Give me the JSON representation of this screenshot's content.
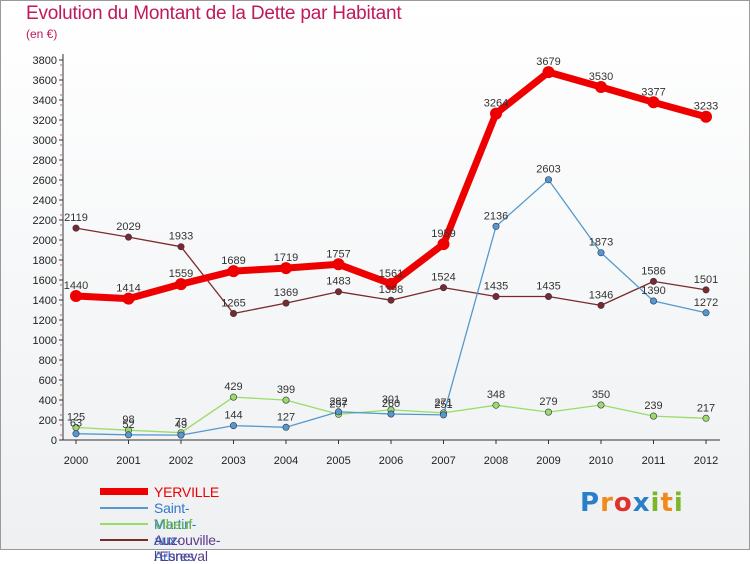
{
  "title": "Evolution du Montant de la Dette par Habitant",
  "subtitle": "(en €)",
  "logo": {
    "letters": [
      {
        "char": "P",
        "color": "#2a7fc9"
      },
      {
        "char": "r",
        "color": "#f08a1c"
      },
      {
        "char": "o",
        "color": "#e0322b"
      },
      {
        "char": "x",
        "color": "#2a7fc9"
      },
      {
        "char": "i",
        "color": "#7ab827"
      },
      {
        "char": "t",
        "color": "#f08a1c"
      },
      {
        "char": "i",
        "color": "#7ab827"
      }
    ]
  },
  "chart_data": {
    "type": "line",
    "title": "Evolution du Montant de la Dette par Habitant",
    "subtitle": "(en €)",
    "x": [
      "2000",
      "2001",
      "2002",
      "2003",
      "2004",
      "2005",
      "2006",
      "2007",
      "2008",
      "2009",
      "2010",
      "2011",
      "2012"
    ],
    "ylim": [
      0,
      3800
    ],
    "yticks": [
      0,
      200,
      400,
      600,
      800,
      1000,
      1200,
      1400,
      1600,
      1800,
      2000,
      2200,
      2400,
      2600,
      2800,
      3000,
      3200,
      3400,
      3600,
      3800
    ],
    "grid": false,
    "legend_position": "bottom-left",
    "series": [
      {
        "name": "Auzouville-l'Esneval",
        "color": "#7a2a2a",
        "values": [
          2119,
          2029,
          1933,
          1265,
          1369,
          1483,
          1398,
          1524,
          1435,
          1435,
          1346,
          1586,
          1501
        ]
      },
      {
        "name": "Vibeuf",
        "color": "#99dd66",
        "values": [
          125,
          98,
          73,
          429,
          399,
          257,
          301,
          271,
          348,
          279,
          350,
          239,
          217
        ]
      },
      {
        "name": "Saint-Martin-aux-Arbres",
        "color": "#5599cc",
        "values": [
          63,
          52,
          49,
          144,
          127,
          282,
          260,
          251,
          2136,
          2603,
          1873,
          1390,
          1272
        ]
      },
      {
        "name": "YERVILLE",
        "color": "#ee0000",
        "values": [
          1440,
          1414,
          1559,
          1689,
          1719,
          1757,
          1561,
          1959,
          3264,
          3679,
          3530,
          3377,
          3233
        ]
      }
    ],
    "legend_order": [
      "YERVILLE",
      "Saint-Martin-aux-Arbres",
      "Vibeuf",
      "Auzouville-l'Esneval"
    ]
  }
}
